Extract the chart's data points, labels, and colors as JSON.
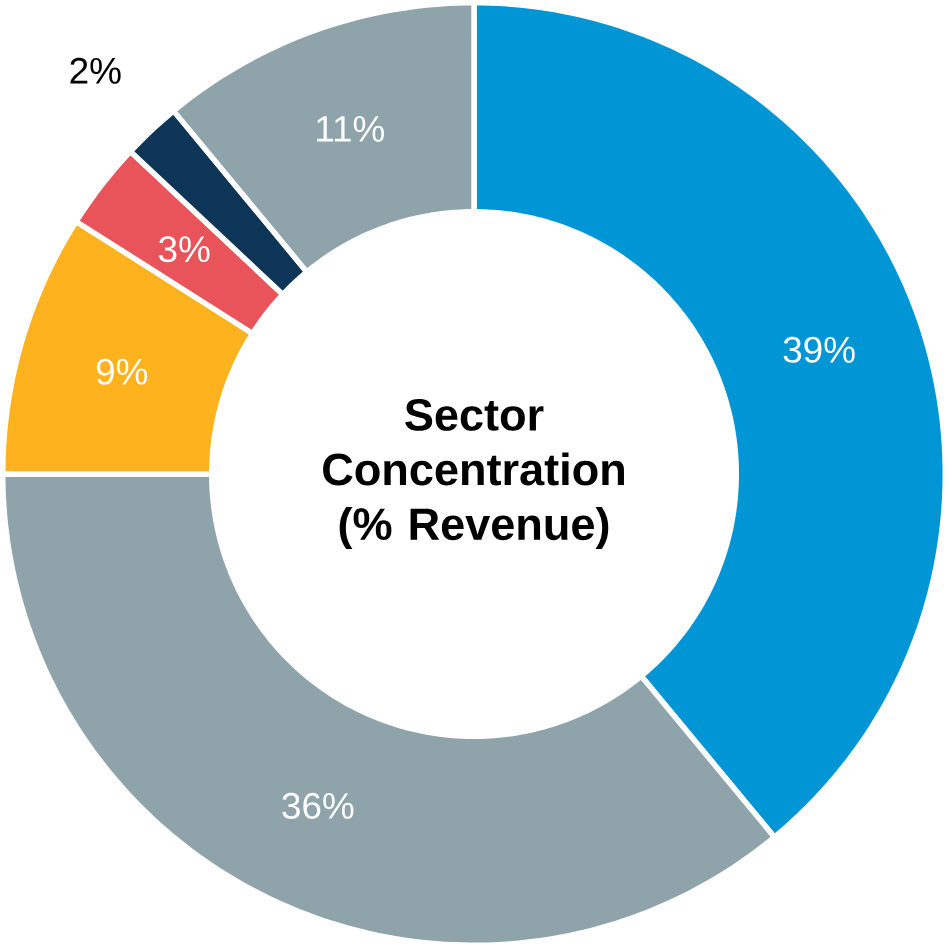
{
  "chart_data": {
    "type": "donut",
    "title": "**Sector Concentration (% Revenue)**",
    "categories": [
      null,
      null,
      null,
      null,
      null,
      null
    ],
    "values": [
      39,
      36,
      9,
      3,
      2,
      11
    ],
    "colors": [
      "#0096d6",
      "#8fa3aa",
      "#fdb21e",
      "#e8545a",
      "#0d3558",
      "#8fa3aa"
    ],
    "value_labels": [
      "39%",
      "36%",
      "9%",
      "3%",
      "2%",
      "11%"
    ]
  }
}
